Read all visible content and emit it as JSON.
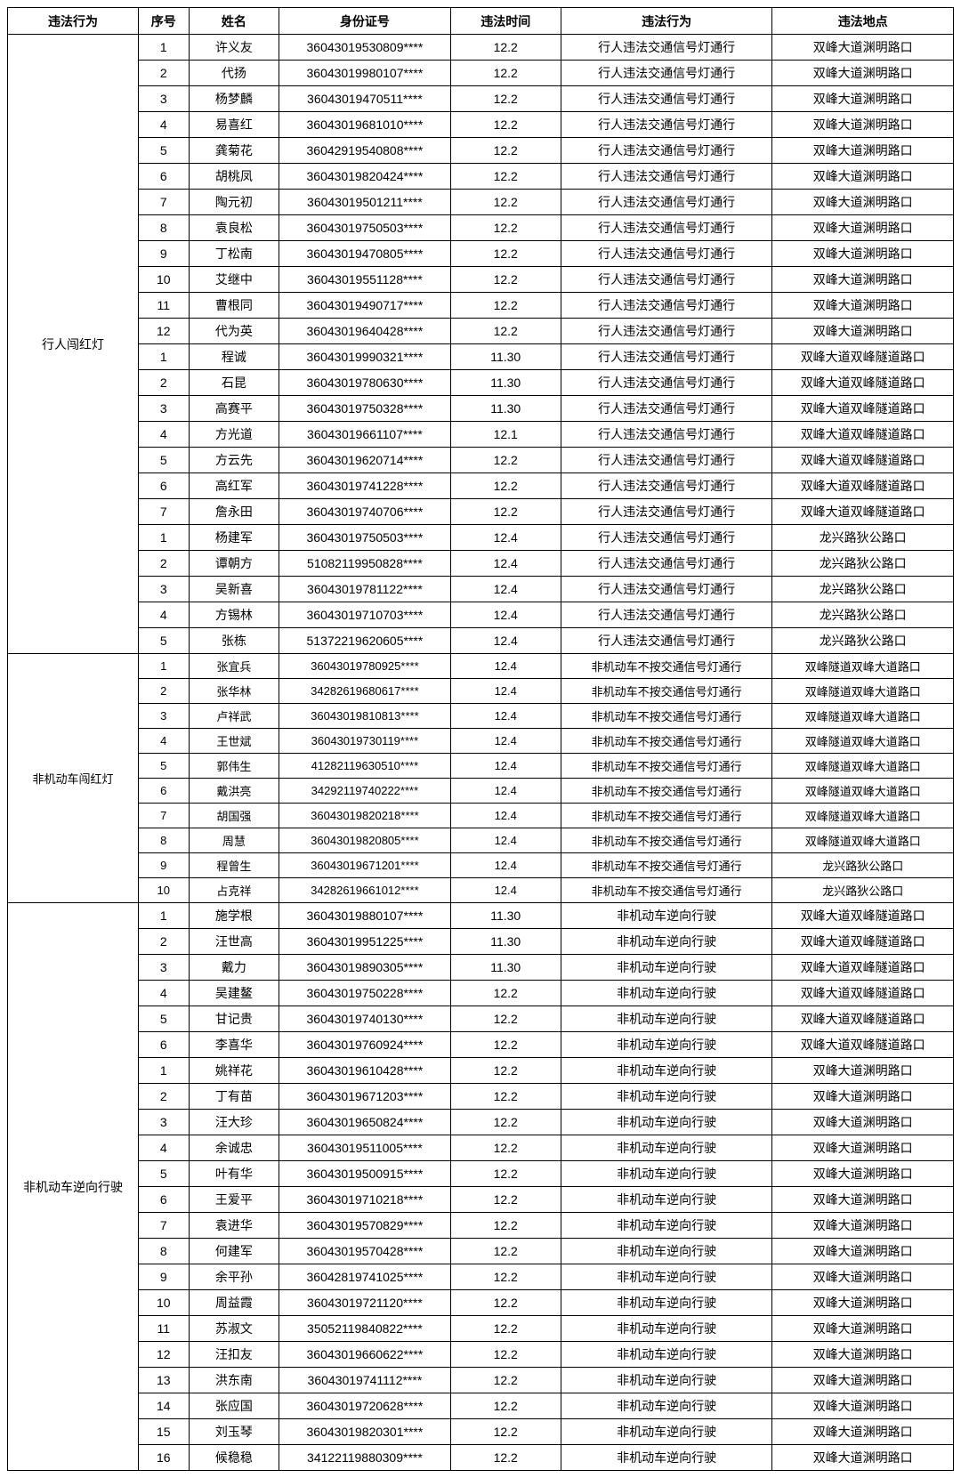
{
  "columns": {
    "category": "违法行为",
    "seq": "序号",
    "name": "姓名",
    "id": "身份证号",
    "time": "违法时间",
    "action": "违法行为",
    "location": "违法地点"
  },
  "sections": [
    {
      "category": "行人闯红灯",
      "dense": false,
      "rows": [
        {
          "seq": "1",
          "name": "许义友",
          "id": "36043019530809****",
          "time": "12.2",
          "action": "行人违法交通信号灯通行",
          "location": "双峰大道渊明路口"
        },
        {
          "seq": "2",
          "name": "代扬",
          "id": "36043019980107****",
          "time": "12.2",
          "action": "行人违法交通信号灯通行",
          "location": "双峰大道渊明路口"
        },
        {
          "seq": "3",
          "name": "杨梦麟",
          "id": "36043019470511****",
          "time": "12.2",
          "action": "行人违法交通信号灯通行",
          "location": "双峰大道渊明路口"
        },
        {
          "seq": "4",
          "name": "易喜红",
          "id": "36043019681010****",
          "time": "12.2",
          "action": "行人违法交通信号灯通行",
          "location": "双峰大道渊明路口"
        },
        {
          "seq": "5",
          "name": "龚菊花",
          "id": "36042919540808****",
          "time": "12.2",
          "action": "行人违法交通信号灯通行",
          "location": "双峰大道渊明路口"
        },
        {
          "seq": "6",
          "name": "胡桃凤",
          "id": "36043019820424****",
          "time": "12.2",
          "action": "行人违法交通信号灯通行",
          "location": "双峰大道渊明路口"
        },
        {
          "seq": "7",
          "name": "陶元初",
          "id": "36043019501211****",
          "time": "12.2",
          "action": "行人违法交通信号灯通行",
          "location": "双峰大道渊明路口"
        },
        {
          "seq": "8",
          "name": "袁良松",
          "id": "36043019750503****",
          "time": "12.2",
          "action": "行人违法交通信号灯通行",
          "location": "双峰大道渊明路口"
        },
        {
          "seq": "9",
          "name": "丁松南",
          "id": "36043019470805****",
          "time": "12.2",
          "action": "行人违法交通信号灯通行",
          "location": "双峰大道渊明路口"
        },
        {
          "seq": "10",
          "name": "艾继中",
          "id": "36043019551128****",
          "time": "12.2",
          "action": "行人违法交通信号灯通行",
          "location": "双峰大道渊明路口"
        },
        {
          "seq": "11",
          "name": "曹根同",
          "id": "36043019490717****",
          "time": "12.2",
          "action": "行人违法交通信号灯通行",
          "location": "双峰大道渊明路口"
        },
        {
          "seq": "12",
          "name": "代为英",
          "id": "36043019640428****",
          "time": "12.2",
          "action": "行人违法交通信号灯通行",
          "location": "双峰大道渊明路口"
        },
        {
          "seq": "1",
          "name": "程诚",
          "id": "36043019990321****",
          "time": "11.30",
          "action": "行人违法交通信号灯通行",
          "location": "双峰大道双峰隧道路口"
        },
        {
          "seq": "2",
          "name": "石昆",
          "id": "36043019780630****",
          "time": "11.30",
          "action": "行人违法交通信号灯通行",
          "location": "双峰大道双峰隧道路口"
        },
        {
          "seq": "3",
          "name": "高赛平",
          "id": "36043019750328****",
          "time": "11.30",
          "action": "行人违法交通信号灯通行",
          "location": "双峰大道双峰隧道路口"
        },
        {
          "seq": "4",
          "name": "方光道",
          "id": "36043019661107****",
          "time": "12.1",
          "action": "行人违法交通信号灯通行",
          "location": "双峰大道双峰隧道路口"
        },
        {
          "seq": "5",
          "name": "方云先",
          "id": "36043019620714****",
          "time": "12.2",
          "action": "行人违法交通信号灯通行",
          "location": "双峰大道双峰隧道路口"
        },
        {
          "seq": "6",
          "name": "高红军",
          "id": "36043019741228****",
          "time": "12.2",
          "action": "行人违法交通信号灯通行",
          "location": "双峰大道双峰隧道路口"
        },
        {
          "seq": "7",
          "name": "詹永田",
          "id": "36043019740706****",
          "time": "12.2",
          "action": "行人违法交通信号灯通行",
          "location": "双峰大道双峰隧道路口"
        },
        {
          "seq": "1",
          "name": "杨建军",
          "id": "36043019750503****",
          "time": "12.4",
          "action": "行人违法交通信号灯通行",
          "location": "龙兴路狄公路口"
        },
        {
          "seq": "2",
          "name": "谭朝方",
          "id": "51082119950828****",
          "time": "12.4",
          "action": "行人违法交通信号灯通行",
          "location": "龙兴路狄公路口"
        },
        {
          "seq": "3",
          "name": "吴新喜",
          "id": "36043019781122****",
          "time": "12.4",
          "action": "行人违法交通信号灯通行",
          "location": "龙兴路狄公路口"
        },
        {
          "seq": "4",
          "name": "方锡林",
          "id": "36043019710703****",
          "time": "12.4",
          "action": "行人违法交通信号灯通行",
          "location": "龙兴路狄公路口"
        },
        {
          "seq": "5",
          "name": "张栋",
          "id": "51372219620605****",
          "time": "12.4",
          "action": "行人违法交通信号灯通行",
          "location": "龙兴路狄公路口"
        }
      ]
    },
    {
      "category": "非机动车闯红灯",
      "dense": true,
      "rows": [
        {
          "seq": "1",
          "name": "张宜兵",
          "id": "36043019780925****",
          "time": "12.4",
          "action": "非机动车不按交通信号灯通行",
          "location": "双峰隧道双峰大道路口"
        },
        {
          "seq": "2",
          "name": "张华林",
          "id": "34282619680617****",
          "time": "12.4",
          "action": "非机动车不按交通信号灯通行",
          "location": "双峰隧道双峰大道路口"
        },
        {
          "seq": "3",
          "name": "卢祥武",
          "id": "36043019810813****",
          "time": "12.4",
          "action": "非机动车不按交通信号灯通行",
          "location": "双峰隧道双峰大道路口"
        },
        {
          "seq": "4",
          "name": "王世斌",
          "id": "36043019730119****",
          "time": "12.4",
          "action": "非机动车不按交通信号灯通行",
          "location": "双峰隧道双峰大道路口"
        },
        {
          "seq": "5",
          "name": "郭伟生",
          "id": "41282119630510****",
          "time": "12.4",
          "action": "非机动车不按交通信号灯通行",
          "location": "双峰隧道双峰大道路口"
        },
        {
          "seq": "6",
          "name": "戴洪亮",
          "id": "34292119740222****",
          "time": "12.4",
          "action": "非机动车不按交通信号灯通行",
          "location": "双峰隧道双峰大道路口"
        },
        {
          "seq": "7",
          "name": "胡国强",
          "id": "36043019820218****",
          "time": "12.4",
          "action": "非机动车不按交通信号灯通行",
          "location": "双峰隧道双峰大道路口"
        },
        {
          "seq": "8",
          "name": "周慧",
          "id": "36043019820805****",
          "time": "12.4",
          "action": "非机动车不按交通信号灯通行",
          "location": "双峰隧道双峰大道路口"
        },
        {
          "seq": "9",
          "name": "程曾生",
          "id": "36043019671201****",
          "time": "12.4",
          "action": "非机动车不按交通信号灯通行",
          "location": "龙兴路狄公路口"
        },
        {
          "seq": "10",
          "name": "占克祥",
          "id": "34282619661012****",
          "time": "12.4",
          "action": "非机动车不按交通信号灯通行",
          "location": "龙兴路狄公路口"
        }
      ]
    },
    {
      "category": "非机动车逆向行驶",
      "dense": false,
      "rows": [
        {
          "seq": "1",
          "name": "施学根",
          "id": "36043019880107****",
          "time": "11.30",
          "action": "非机动车逆向行驶",
          "location": "双峰大道双峰隧道路口"
        },
        {
          "seq": "2",
          "name": "汪世高",
          "id": "36043019951225****",
          "time": "11.30",
          "action": "非机动车逆向行驶",
          "location": "双峰大道双峰隧道路口"
        },
        {
          "seq": "3",
          "name": "戴力",
          "id": "36043019890305****",
          "time": "11.30",
          "action": "非机动车逆向行驶",
          "location": "双峰大道双峰隧道路口"
        },
        {
          "seq": "4",
          "name": "吴建鳌",
          "id": "36043019750228****",
          "time": "12.2",
          "action": "非机动车逆向行驶",
          "location": "双峰大道双峰隧道路口"
        },
        {
          "seq": "5",
          "name": "甘记贵",
          "id": "36043019740130****",
          "time": "12.2",
          "action": "非机动车逆向行驶",
          "location": "双峰大道双峰隧道路口"
        },
        {
          "seq": "6",
          "name": "李喜华",
          "id": "36043019760924****",
          "time": "12.2",
          "action": "非机动车逆向行驶",
          "location": "双峰大道双峰隧道路口"
        },
        {
          "seq": "1",
          "name": "姚祥花",
          "id": "36043019610428****",
          "time": "12.2",
          "action": "非机动车逆向行驶",
          "location": "双峰大道渊明路口"
        },
        {
          "seq": "2",
          "name": "丁有苗",
          "id": "36043019671203****",
          "time": "12.2",
          "action": "非机动车逆向行驶",
          "location": "双峰大道渊明路口"
        },
        {
          "seq": "3",
          "name": "汪大珍",
          "id": "36043019650824****",
          "time": "12.2",
          "action": "非机动车逆向行驶",
          "location": "双峰大道渊明路口"
        },
        {
          "seq": "4",
          "name": "余诚忠",
          "id": "36043019511005****",
          "time": "12.2",
          "action": "非机动车逆向行驶",
          "location": "双峰大道渊明路口"
        },
        {
          "seq": "5",
          "name": "叶有华",
          "id": "36043019500915****",
          "time": "12.2",
          "action": "非机动车逆向行驶",
          "location": "双峰大道渊明路口"
        },
        {
          "seq": "6",
          "name": "王爱平",
          "id": "36043019710218****",
          "time": "12.2",
          "action": "非机动车逆向行驶",
          "location": "双峰大道渊明路口"
        },
        {
          "seq": "7",
          "name": "袁进华",
          "id": "36043019570829****",
          "time": "12.2",
          "action": "非机动车逆向行驶",
          "location": "双峰大道渊明路口"
        },
        {
          "seq": "8",
          "name": "何建军",
          "id": "36043019570428****",
          "time": "12.2",
          "action": "非机动车逆向行驶",
          "location": "双峰大道渊明路口"
        },
        {
          "seq": "9",
          "name": "余平孙",
          "id": "36042819741025****",
          "time": "12.2",
          "action": "非机动车逆向行驶",
          "location": "双峰大道渊明路口"
        },
        {
          "seq": "10",
          "name": "周益霞",
          "id": "36043019721120****",
          "time": "12.2",
          "action": "非机动车逆向行驶",
          "location": "双峰大道渊明路口"
        },
        {
          "seq": "11",
          "name": "苏淑文",
          "id": "35052119840822****",
          "time": "12.2",
          "action": "非机动车逆向行驶",
          "location": "双峰大道渊明路口"
        },
        {
          "seq": "12",
          "name": "汪扣友",
          "id": "36043019660622****",
          "time": "12.2",
          "action": "非机动车逆向行驶",
          "location": "双峰大道渊明路口"
        },
        {
          "seq": "13",
          "name": "洪东南",
          "id": "36043019741112****",
          "time": "12.2",
          "action": "非机动车逆向行驶",
          "location": "双峰大道渊明路口"
        },
        {
          "seq": "14",
          "name": "张应国",
          "id": "36043019720628****",
          "time": "12.2",
          "action": "非机动车逆向行驶",
          "location": "双峰大道渊明路口"
        },
        {
          "seq": "15",
          "name": "刘玉琴",
          "id": "36043019820301****",
          "time": "12.2",
          "action": "非机动车逆向行驶",
          "location": "双峰大道渊明路口"
        },
        {
          "seq": "16",
          "name": "候稳稳",
          "id": "34122119880309****",
          "time": "12.2",
          "action": "非机动车逆向行驶",
          "location": "双峰大道渊明路口"
        }
      ]
    }
  ]
}
